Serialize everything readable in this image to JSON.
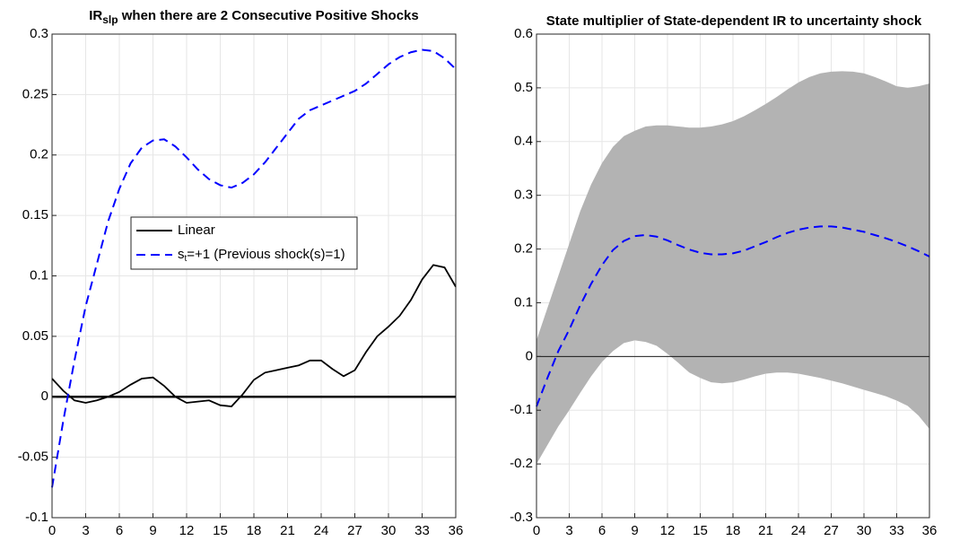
{
  "chart_data": [
    {
      "type": "line",
      "title": "IR",
      "title_sub": "slp",
      "title_rest": " when there are 2 Consecutive Positive Shocks",
      "x": [
        0,
        1,
        2,
        3,
        4,
        5,
        6,
        7,
        8,
        9,
        10,
        11,
        12,
        13,
        14,
        15,
        16,
        17,
        18,
        19,
        20,
        21,
        22,
        23,
        24,
        25,
        26,
        27,
        28,
        29,
        30,
        31,
        32,
        33,
        34,
        35,
        36
      ],
      "xlim": [
        0,
        36
      ],
      "xticks": [
        0,
        3,
        6,
        9,
        12,
        15,
        18,
        21,
        24,
        27,
        30,
        33,
        36
      ],
      "ylim": [
        -0.1,
        0.3
      ],
      "yticks": [
        -0.1,
        -0.05,
        0,
        0.05,
        0.1,
        0.15,
        0.2,
        0.25,
        0.3
      ],
      "grid": true,
      "hline": 0,
      "hline_width": 2.5,
      "legend": "inside",
      "series": [
        {
          "name": "Linear",
          "color": "#000000",
          "dash": false,
          "values": [
            0.015,
            0.005,
            -0.003,
            -0.005,
            -0.003,
            0,
            0.004,
            0.01,
            0.015,
            0.016,
            0.009,
            0,
            -0.005,
            -0.004,
            -0.003,
            -0.007,
            -0.008,
            0.002,
            0.014,
            0.02,
            0.022,
            0.024,
            0.026,
            0.03,
            0.03,
            0.023,
            0.017,
            0.022,
            0.037,
            0.05,
            0.058,
            0.067,
            0.08,
            0.097,
            0.109,
            0.107,
            0.091
          ]
        },
        {
          "name": "s",
          "name_sub": "t",
          "name_rest": "=+1 (Previous shock(s)=1)",
          "color": "#0000ff",
          "dash": true,
          "values": [
            -0.075,
            -0.02,
            0.03,
            0.075,
            0.11,
            0.145,
            0.172,
            0.193,
            0.206,
            0.212,
            0.213,
            0.207,
            0.198,
            0.188,
            0.18,
            0.175,
            0.173,
            0.177,
            0.184,
            0.194,
            0.206,
            0.218,
            0.23,
            0.237,
            0.241,
            0.245,
            0.249,
            0.253,
            0.259,
            0.267,
            0.275,
            0.281,
            0.285,
            0.287,
            0.286,
            0.28,
            0.271
          ]
        }
      ]
    },
    {
      "type": "line",
      "title": "State multiplier of State-dependent IR to uncertainty shock",
      "x": [
        0,
        1,
        2,
        3,
        4,
        5,
        6,
        7,
        8,
        9,
        10,
        11,
        12,
        13,
        14,
        15,
        16,
        17,
        18,
        19,
        20,
        21,
        22,
        23,
        24,
        25,
        26,
        27,
        28,
        29,
        30,
        31,
        32,
        33,
        34,
        35,
        36
      ],
      "xlim": [
        0,
        36
      ],
      "xticks": [
        0,
        3,
        6,
        9,
        12,
        15,
        18,
        21,
        24,
        27,
        30,
        33,
        36
      ],
      "ylim": [
        -0.3,
        0.6
      ],
      "yticks": [
        -0.3,
        -0.2,
        -0.1,
        0,
        0.1,
        0.2,
        0.3,
        0.4,
        0.5,
        0.6
      ],
      "grid": true,
      "hline": 0,
      "hline_width": 0.8,
      "band": {
        "color": "#b3b3b3",
        "upper": [
          0.03,
          0.09,
          0.15,
          0.21,
          0.27,
          0.32,
          0.36,
          0.39,
          0.41,
          0.42,
          0.428,
          0.43,
          0.43,
          0.428,
          0.426,
          0.426,
          0.428,
          0.432,
          0.438,
          0.447,
          0.458,
          0.47,
          0.483,
          0.497,
          0.51,
          0.52,
          0.527,
          0.53,
          0.531,
          0.53,
          0.527,
          0.52,
          0.512,
          0.503,
          0.5,
          0.503,
          0.508
        ],
        "lower": [
          -0.2,
          -0.165,
          -0.13,
          -0.1,
          -0.068,
          -0.037,
          -0.01,
          0.01,
          0.025,
          0.03,
          0.027,
          0.02,
          0.005,
          -0.012,
          -0.03,
          -0.04,
          -0.048,
          -0.05,
          -0.048,
          -0.043,
          -0.037,
          -0.032,
          -0.03,
          -0.03,
          -0.032,
          -0.036,
          -0.04,
          -0.045,
          -0.05,
          -0.056,
          -0.062,
          -0.068,
          -0.074,
          -0.082,
          -0.092,
          -0.11,
          -0.135
        ]
      },
      "series": [
        {
          "color": "#0000ff",
          "dash": true,
          "values": [
            -0.093,
            -0.04,
            0.01,
            0.05,
            0.095,
            0.135,
            0.17,
            0.198,
            0.215,
            0.224,
            0.226,
            0.223,
            0.216,
            0.207,
            0.199,
            0.193,
            0.19,
            0.19,
            0.192,
            0.197,
            0.205,
            0.213,
            0.222,
            0.23,
            0.236,
            0.24,
            0.242,
            0.242,
            0.24,
            0.236,
            0.232,
            0.226,
            0.22,
            0.213,
            0.205,
            0.196,
            0.186
          ]
        }
      ]
    }
  ]
}
